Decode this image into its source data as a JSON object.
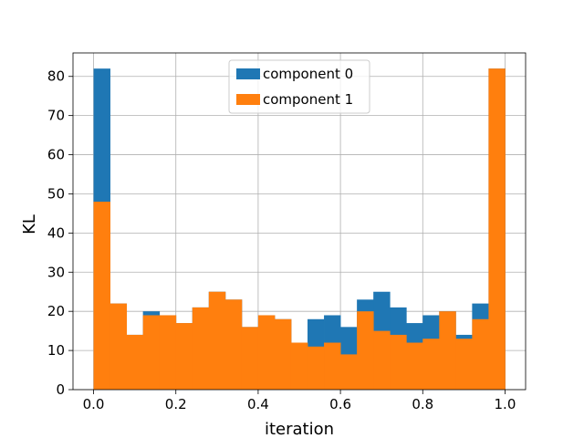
{
  "chart_data": {
    "type": "bar",
    "title": "",
    "xlabel": "iteration",
    "ylabel": "KL",
    "xlim": [
      -0.05,
      1.05
    ],
    "ylim": [
      0,
      86
    ],
    "xticks": [
      0.0,
      0.2,
      0.4,
      0.6,
      0.8,
      1.0
    ],
    "xtick_labels": [
      "0.0",
      "0.2",
      "0.4",
      "0.6",
      "0.8",
      "1.0"
    ],
    "yticks": [
      0,
      10,
      20,
      30,
      40,
      50,
      60,
      70,
      80
    ],
    "ytick_labels": [
      "0",
      "10",
      "20",
      "30",
      "40",
      "50",
      "60",
      "70",
      "80"
    ],
    "grid": true,
    "legend_position": "top-center",
    "bin_edges": [
      0.0,
      0.04,
      0.08,
      0.12,
      0.16,
      0.2,
      0.24,
      0.28,
      0.32,
      0.36,
      0.4,
      0.44,
      0.48,
      0.52,
      0.56,
      0.6,
      0.64,
      0.68,
      0.72,
      0.76,
      0.8,
      0.84,
      0.88,
      0.92,
      0.96,
      1.0
    ],
    "series": [
      {
        "name": "component 0",
        "color": "#1f77b4",
        "values": [
          82,
          22,
          14,
          20,
          19,
          17,
          21,
          25,
          23,
          16,
          19,
          18,
          12,
          18,
          19,
          16,
          23,
          25,
          21,
          17,
          19,
          20,
          14,
          22,
          82
        ]
      },
      {
        "name": "component 1",
        "color": "#ff7f0e",
        "values": [
          48,
          22,
          14,
          19,
          19,
          17,
          21,
          25,
          23,
          16,
          19,
          18,
          12,
          11,
          12,
          9,
          20,
          15,
          14,
          12,
          13,
          20,
          13,
          18,
          82
        ]
      }
    ]
  }
}
